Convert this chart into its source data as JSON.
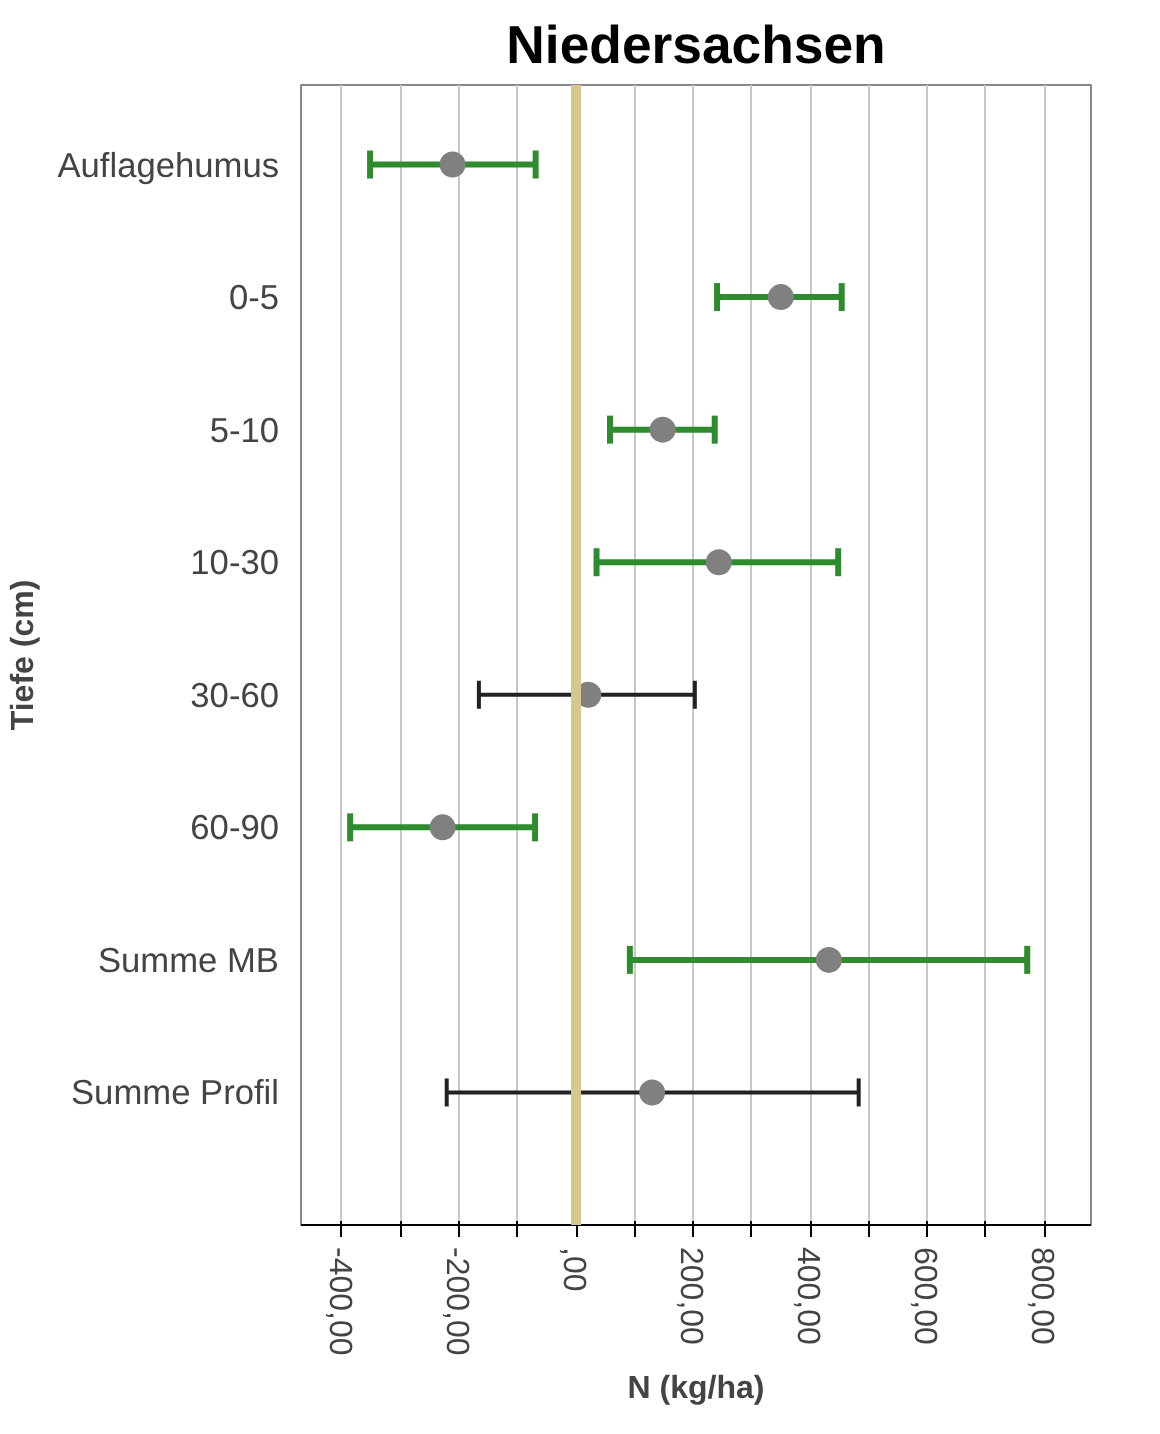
{
  "chart_data": {
    "type": "scatter",
    "title": "Niedersachsen",
    "xlabel": "N (kg/ha)",
    "ylabel": "Tiefe (cm)",
    "orientation": "horizontal",
    "categories": [
      "Auflagehumus",
      "0-5",
      "5-10",
      "10-30",
      "30-60",
      "60-90",
      "Summe MB",
      "Summe Profil"
    ],
    "series": [
      {
        "color": "#2e8b2e",
        "colors": [
          "#808080",
          "#808080",
          "#808080",
          "#808080",
          null,
          "#808080",
          "#808080",
          null
        ],
        "values": [
          -211,
          350,
          148,
          244,
          null,
          -228,
          432,
          null
        ],
        "errors": [
          [
            -352,
            -69
          ],
          [
            241,
            454
          ],
          [
            58,
            237
          ],
          [
            35,
            448
          ],
          null,
          [
            -386,
            -70
          ],
          [
            92,
            771
          ],
          null
        ]
      },
      {
        "color": "#222222",
        "colors": [
          null,
          null,
          null,
          null,
          "#808080",
          null,
          null,
          "#808080"
        ],
        "values": [
          null,
          null,
          null,
          null,
          21,
          null,
          null,
          130
        ],
        "errors": [
          null,
          null,
          null,
          null,
          [
            -166,
            203
          ],
          null,
          null,
          [
            -221,
            483
          ]
        ]
      }
    ],
    "xlim": [
      -470,
      880
    ],
    "xticks": [
      {
        "value": -400,
        "label": "-400,00"
      },
      {
        "value": -300,
        "label": null
      },
      {
        "value": -200,
        "label": "-200,00"
      },
      {
        "value": -100,
        "label": null
      },
      {
        "value": 0,
        "label": ",00"
      },
      {
        "value": 100,
        "label": null
      },
      {
        "value": 200,
        "label": "200,00"
      },
      {
        "value": 300,
        "label": null
      },
      {
        "value": 400,
        "label": "400,00"
      },
      {
        "value": 500,
        "label": null
      },
      {
        "value": 600,
        "label": "600,00"
      },
      {
        "value": 700,
        "label": null
      },
      {
        "value": 800,
        "label": "800,00"
      }
    ],
    "ref_lines": [
      {
        "axis": "x",
        "value": 0,
        "color": "#d4c98a"
      }
    ],
    "grid": "x",
    "marker": "circle"
  }
}
